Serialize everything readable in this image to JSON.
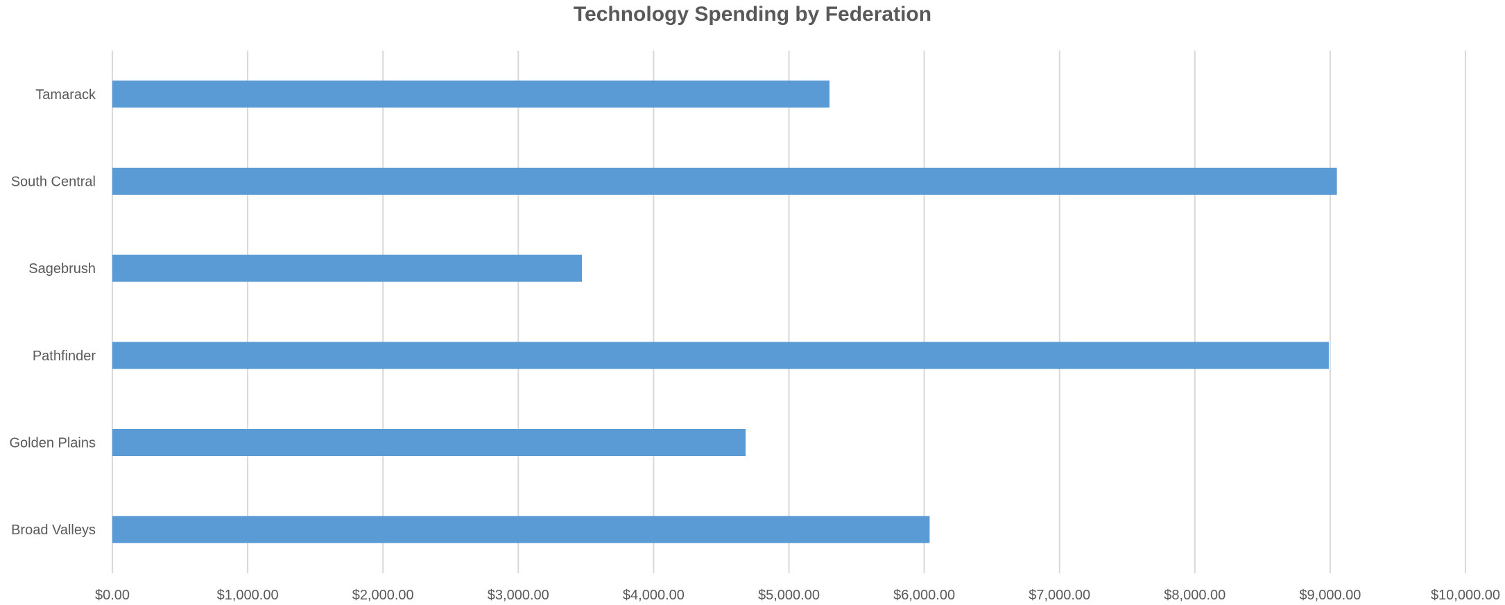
{
  "chart_data": {
    "type": "bar",
    "orientation": "horizontal",
    "title": "Technology Spending by Federation",
    "xlabel": "",
    "ylabel": "",
    "categories": [
      "Tamarack",
      "South Central",
      "Sagebrush",
      "Pathfinder",
      "Golden Plains",
      "Broad Valleys"
    ],
    "values": [
      5300,
      9050,
      3470,
      8990,
      4680,
      6040
    ],
    "xlim": [
      0,
      10000
    ],
    "ticks": [
      0,
      1000,
      2000,
      3000,
      4000,
      5000,
      6000,
      7000,
      8000,
      9000,
      10000
    ],
    "tick_labels": [
      "$0.00",
      "$1,000.00",
      "$2,000.00",
      "$3,000.00",
      "$4,000.00",
      "$5,000.00",
      "$6,000.00",
      "$7,000.00",
      "$8,000.00",
      "$9,000.00",
      "$10,000.00"
    ],
    "bar_color": "#5b9bd5",
    "grid": true,
    "legend": "none"
  }
}
